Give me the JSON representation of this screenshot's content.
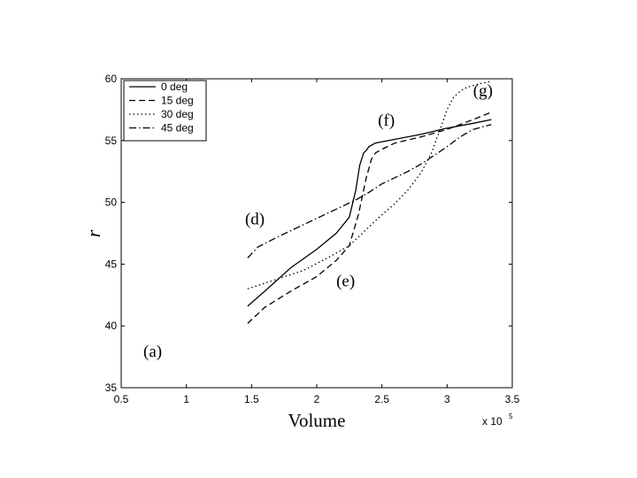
{
  "chart_data": {
    "type": "line",
    "title": "",
    "xlabel": "Volume",
    "ylabel": "r",
    "x_exponent_base": "x 10",
    "x_exponent_power": "5",
    "xlim": [
      0.5,
      3.5
    ],
    "ylim": [
      35,
      60
    ],
    "xticks": [
      "0.5",
      "1",
      "1.5",
      "2",
      "2.5",
      "3",
      "3.5"
    ],
    "yticks": [
      "35",
      "40",
      "45",
      "50",
      "55",
      "60"
    ],
    "grid": false,
    "legend_position": "top-left",
    "series": [
      {
        "name": "0 deg",
        "style": "solid",
        "x": [
          1.47,
          1.6,
          1.8,
          2.0,
          2.15,
          2.25,
          2.3,
          2.33,
          2.36,
          2.38,
          2.4,
          2.45,
          2.6,
          2.8,
          3.0,
          3.2,
          3.34
        ],
        "y": [
          41.6,
          42.8,
          44.7,
          46.2,
          47.5,
          48.8,
          51.0,
          53.0,
          54.0,
          54.2,
          54.5,
          54.8,
          55.1,
          55.5,
          56.0,
          56.4,
          56.7
        ]
      },
      {
        "name": "15 deg",
        "style": "dashed",
        "x": [
          1.47,
          1.6,
          1.8,
          2.0,
          2.15,
          2.25,
          2.32,
          2.38,
          2.42,
          2.45,
          2.5,
          2.6,
          2.8,
          3.0,
          3.2,
          3.34
        ],
        "y": [
          40.2,
          41.5,
          42.8,
          44.0,
          45.3,
          46.5,
          49.0,
          52.0,
          53.5,
          54.0,
          54.3,
          54.8,
          55.3,
          55.9,
          56.7,
          57.3
        ]
      },
      {
        "name": "30 deg",
        "style": "dotted",
        "x": [
          1.47,
          1.7,
          1.9,
          2.1,
          2.25,
          2.4,
          2.5,
          2.6,
          2.7,
          2.8,
          2.88,
          2.95,
          3.0,
          3.05,
          3.1,
          3.15,
          3.25,
          3.34
        ],
        "y": [
          43.0,
          43.8,
          44.5,
          45.6,
          46.5,
          48.0,
          49.0,
          49.9,
          51.0,
          52.4,
          54.0,
          56.0,
          57.5,
          58.5,
          59.0,
          59.3,
          59.6,
          59.8
        ]
      },
      {
        "name": "45 deg",
        "style": "dashdot",
        "x": [
          1.47,
          1.55,
          1.7,
          1.9,
          2.1,
          2.3,
          2.4,
          2.5,
          2.6,
          2.7,
          2.8,
          2.9,
          3.0,
          3.1,
          3.2,
          3.34
        ],
        "y": [
          45.5,
          46.4,
          47.2,
          48.2,
          49.2,
          50.2,
          50.8,
          51.5,
          52.0,
          52.5,
          53.1,
          53.8,
          54.5,
          55.3,
          55.9,
          56.3
        ]
      }
    ],
    "annotations": [
      {
        "text": "(a)",
        "x": 0.67,
        "y": 37.5
      },
      {
        "text": "(d)",
        "x": 1.45,
        "y": 48.2
      },
      {
        "text": "(e)",
        "x": 2.15,
        "y": 43.2
      },
      {
        "text": "(f)",
        "x": 2.47,
        "y": 56.2
      },
      {
        "text": "(g)",
        "x": 3.2,
        "y": 58.6
      }
    ]
  }
}
